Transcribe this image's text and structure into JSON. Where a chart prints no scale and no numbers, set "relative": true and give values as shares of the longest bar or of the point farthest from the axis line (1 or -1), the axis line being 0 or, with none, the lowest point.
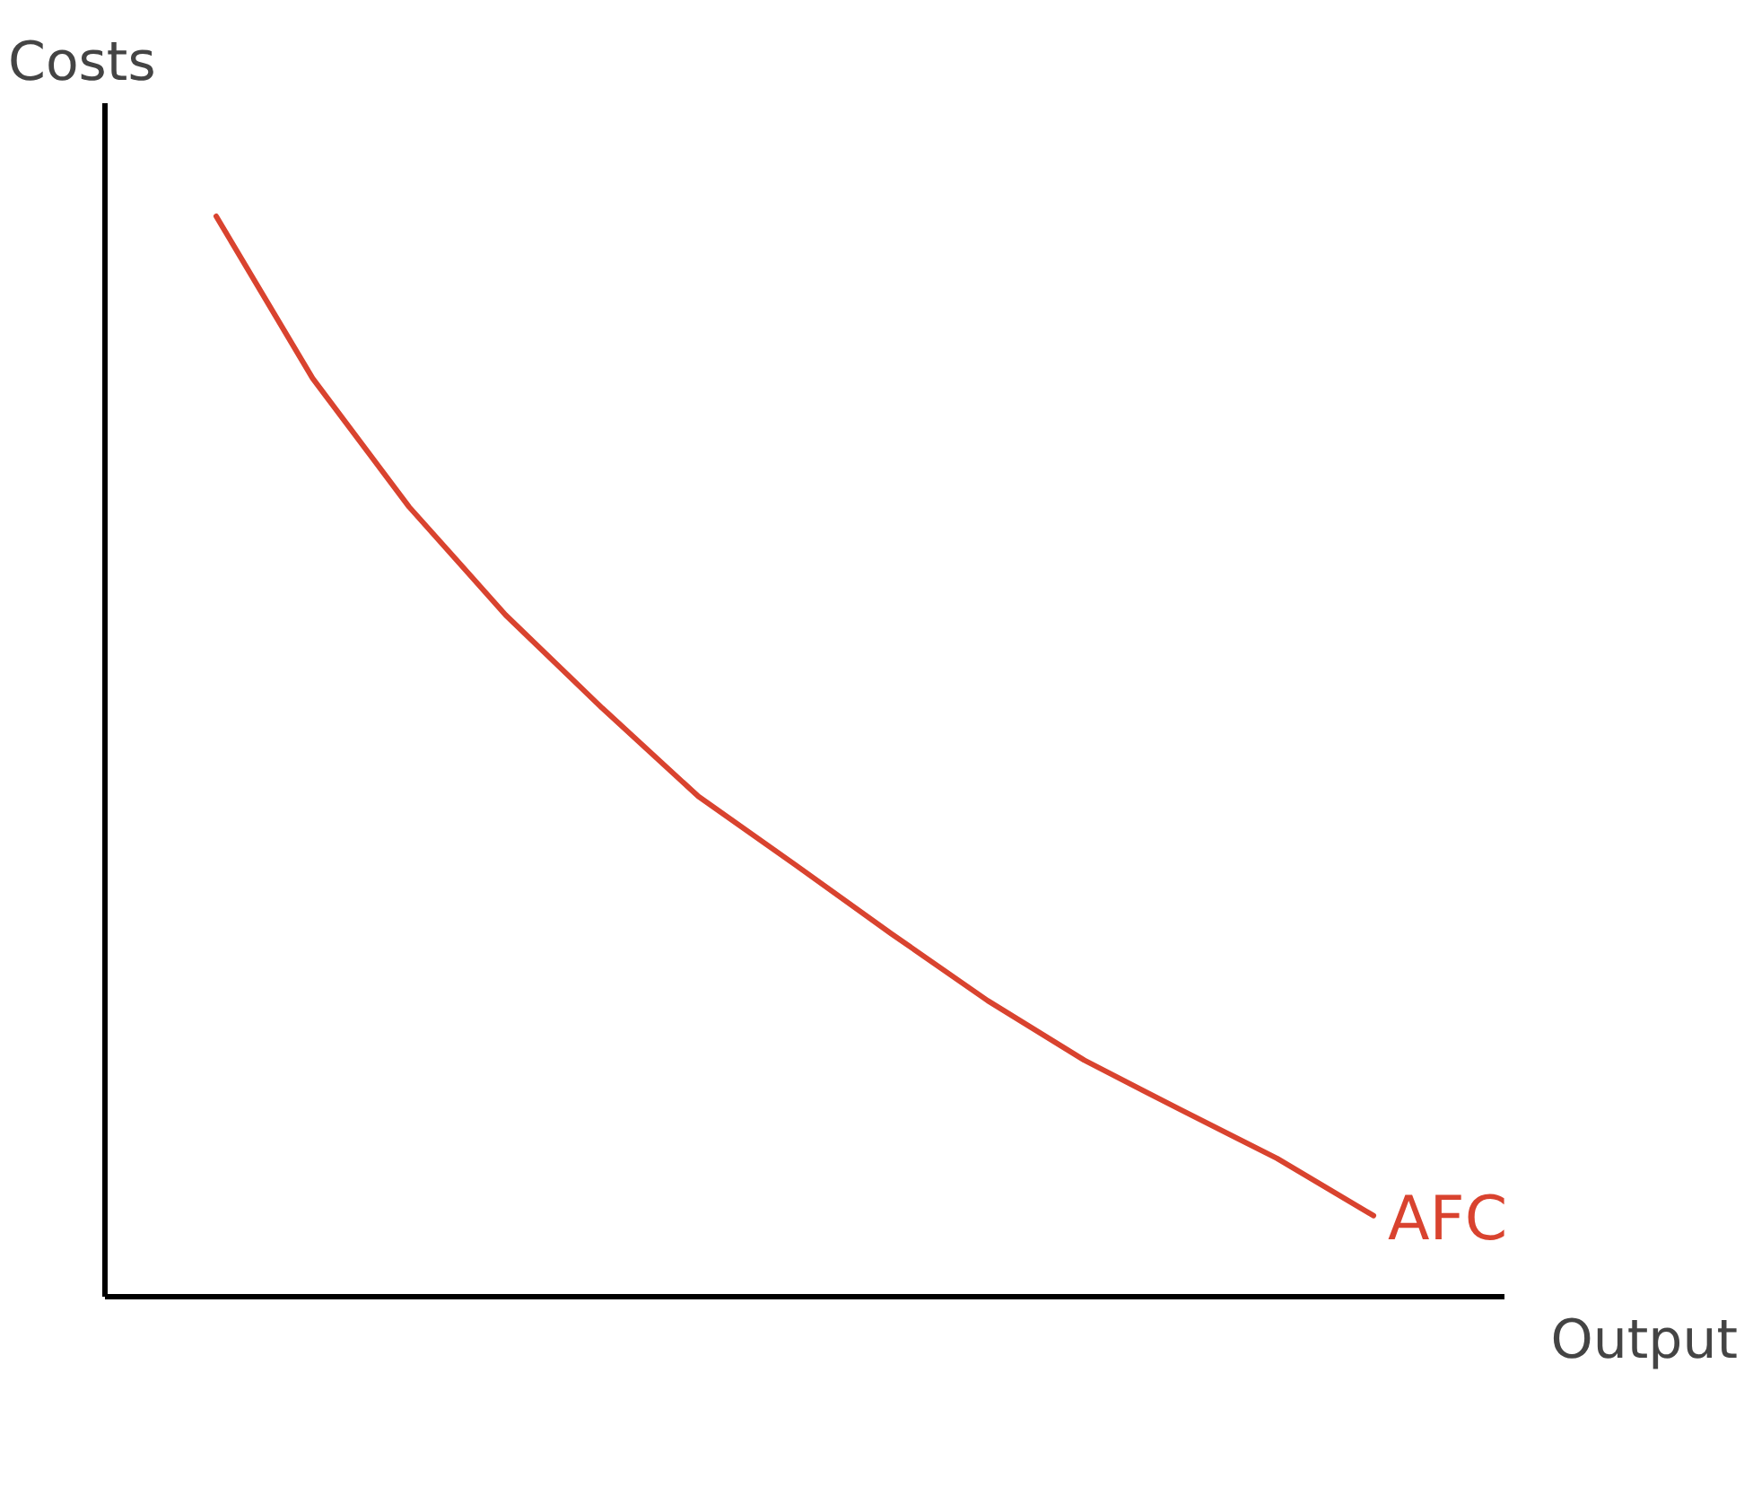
{
  "chart_data": {
    "type": "line",
    "relative": true,
    "xlabel": "Output",
    "ylabel": "Costs",
    "categories": [
      null,
      null,
      null,
      null,
      null,
      null,
      null,
      null,
      null,
      null,
      null,
      null,
      null
    ],
    "grid": false,
    "legend": false,
    "marker": "none",
    "line_style": "solid",
    "series": [
      {
        "name": "AFC",
        "color": "#d9432f",
        "values": [
          1.0,
          0.85,
          0.731,
          0.631,
          0.545,
          0.463,
          0.4,
          0.336,
          0.274,
          0.219,
          0.173,
          0.128,
          0.075
        ]
      }
    ]
  }
}
